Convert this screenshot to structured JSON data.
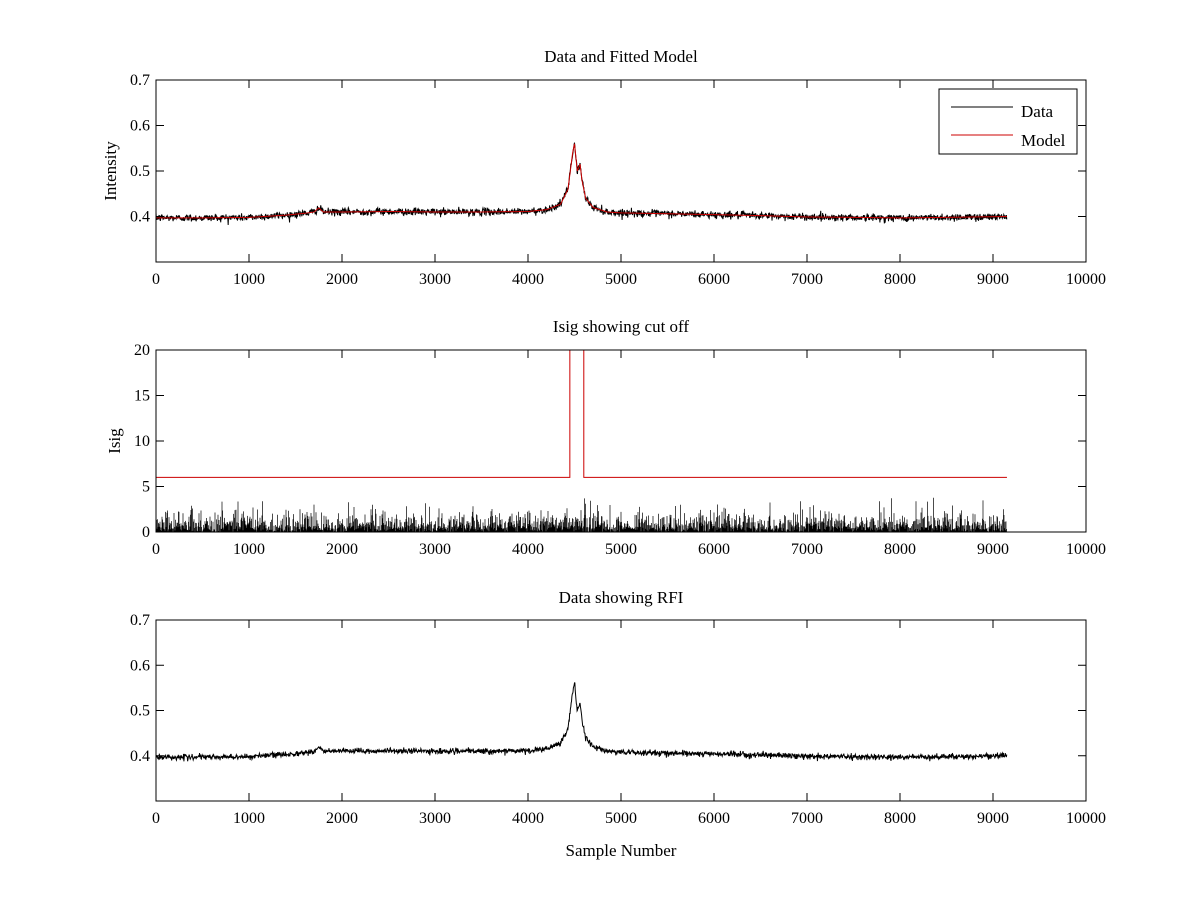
{
  "chart_data": [
    {
      "type": "line",
      "title": "Data and Fitted Model",
      "xlabel": "",
      "ylabel": "Intensity",
      "xlim": [
        0,
        10000
      ],
      "ylim": [
        0.3,
        0.7
      ],
      "xticks": [
        0,
        1000,
        2000,
        3000,
        4000,
        5000,
        6000,
        7000,
        8000,
        9000,
        10000
      ],
      "yticks": [
        0.4,
        0.5,
        0.6,
        0.7
      ],
      "legend": {
        "placement": "top-right",
        "entries": [
          "Data",
          "Model"
        ]
      },
      "series": [
        {
          "name": "Data",
          "color": "#000000",
          "noise": 0.004,
          "x": [
            0,
            500,
            1000,
            1400,
            1600,
            1700,
            1750,
            1800,
            2000,
            2500,
            3000,
            3500,
            4000,
            4200,
            4350,
            4430,
            4480,
            4500,
            4530,
            4560,
            4580,
            4620,
            4700,
            4850,
            5000,
            5500,
            6000,
            6500,
            7000,
            7500,
            8000,
            8500,
            9150
          ],
          "y": [
            0.397,
            0.397,
            0.398,
            0.403,
            0.407,
            0.41,
            0.419,
            0.41,
            0.41,
            0.411,
            0.41,
            0.41,
            0.411,
            0.415,
            0.427,
            0.46,
            0.54,
            0.56,
            0.5,
            0.515,
            0.48,
            0.44,
            0.42,
            0.41,
            0.408,
            0.406,
            0.404,
            0.402,
            0.399,
            0.398,
            0.397,
            0.398,
            0.4
          ]
        },
        {
          "name": "Model",
          "color": "#cc0000",
          "noise": 0,
          "x": [
            0,
            500,
            1000,
            1400,
            1600,
            1700,
            1750,
            1800,
            2000,
            2500,
            3000,
            3500,
            4000,
            4200,
            4350,
            4430,
            4480,
            4500,
            4530,
            4560,
            4580,
            4620,
            4700,
            4850,
            5000,
            5500,
            6000,
            6500,
            7000,
            7500,
            8000,
            8500,
            9150
          ],
          "y": [
            0.397,
            0.397,
            0.398,
            0.403,
            0.407,
            0.41,
            0.419,
            0.41,
            0.41,
            0.411,
            0.41,
            0.41,
            0.411,
            0.415,
            0.427,
            0.46,
            0.54,
            0.56,
            0.5,
            0.515,
            0.48,
            0.44,
            0.42,
            0.41,
            0.408,
            0.406,
            0.404,
            0.402,
            0.399,
            0.398,
            0.397,
            0.398,
            0.4
          ]
        }
      ]
    },
    {
      "type": "line",
      "title": "Isig showing cut off",
      "xlabel": "",
      "ylabel": "Isig",
      "xlim": [
        0,
        10000
      ],
      "ylim": [
        0,
        20
      ],
      "xticks": [
        0,
        1000,
        2000,
        3000,
        4000,
        5000,
        6000,
        7000,
        8000,
        9000,
        10000
      ],
      "yticks": [
        0,
        5,
        10,
        15,
        20
      ],
      "series": [
        {
          "color": "#000000",
          "style": "noise",
          "x_range": [
            0,
            9150
          ],
          "typical_max": 2.5,
          "peak_max": 3.8
        },
        {
          "color": "#cc0000",
          "style": "line",
          "x": [
            0,
            4450,
            4450,
            4600,
            4600,
            9150
          ],
          "y": [
            6,
            6,
            20,
            20,
            6,
            6
          ]
        }
      ]
    },
    {
      "type": "line",
      "title": "Data showing RFI",
      "xlabel": "Sample Number",
      "ylabel": "",
      "xlim": [
        0,
        10000
      ],
      "ylim": [
        0.3,
        0.7
      ],
      "xticks": [
        0,
        1000,
        2000,
        3000,
        4000,
        5000,
        6000,
        7000,
        8000,
        9000,
        10000
      ],
      "yticks": [
        0.4,
        0.5,
        0.6,
        0.7
      ],
      "series": [
        {
          "color": "#000000",
          "noise": 0.003,
          "x": [
            0,
            500,
            1000,
            1400,
            1600,
            1700,
            1750,
            1800,
            2000,
            2500,
            3000,
            3500,
            4000,
            4200,
            4350,
            4430,
            4480,
            4500,
            4530,
            4560,
            4580,
            4620,
            4700,
            4850,
            5000,
            5500,
            6000,
            6500,
            7000,
            7500,
            8000,
            8500,
            9150
          ],
          "y": [
            0.397,
            0.397,
            0.398,
            0.403,
            0.407,
            0.41,
            0.419,
            0.41,
            0.41,
            0.411,
            0.41,
            0.41,
            0.411,
            0.415,
            0.427,
            0.46,
            0.54,
            0.56,
            0.5,
            0.515,
            0.48,
            0.44,
            0.42,
            0.41,
            0.408,
            0.406,
            0.404,
            0.402,
            0.399,
            0.398,
            0.397,
            0.398,
            0.4
          ]
        }
      ]
    }
  ]
}
